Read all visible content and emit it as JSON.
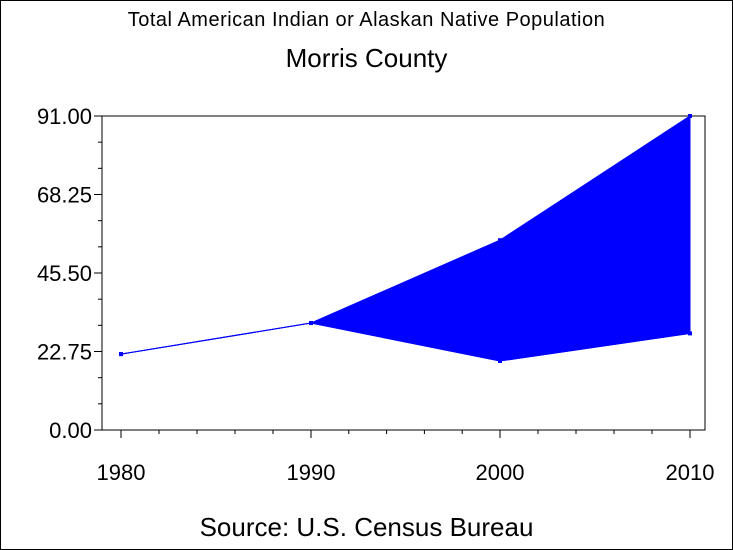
{
  "chart_data": {
    "type": "area",
    "title": "Total American Indian or Alaskan Native Population",
    "subtitle": "Morris County",
    "footnote": "Source: U.S. Census Bureau",
    "xlabel": "",
    "ylabel": "",
    "x": [
      1980,
      1990,
      2000,
      2010
    ],
    "x_tick_labels": [
      "1980",
      "1990",
      "2000",
      "2010"
    ],
    "y_tick_labels": [
      "0.00",
      "22.75",
      "45.50",
      "68.25",
      "91.00"
    ],
    "ylim": [
      0,
      91
    ],
    "grid": false,
    "legend": "none",
    "band": {
      "upper": [
        22,
        31,
        55,
        91
      ],
      "lower": [
        22,
        31,
        20,
        28
      ]
    },
    "color": "#0000ff"
  }
}
